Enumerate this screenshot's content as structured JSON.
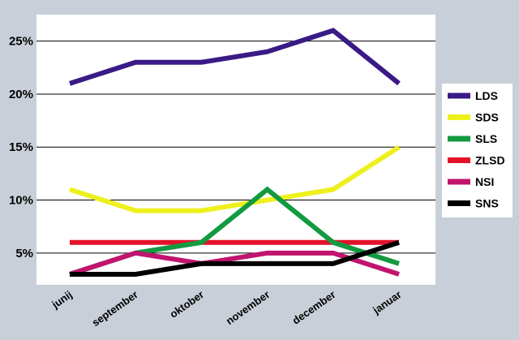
{
  "chart_data": {
    "type": "line",
    "categories": [
      "junij",
      "september",
      "oktober",
      "november",
      "december",
      "januar"
    ],
    "y_ticks": [
      5,
      10,
      15,
      20,
      25
    ],
    "y_tick_labels": [
      "5%",
      "10%",
      "15%",
      "20%",
      "25%"
    ],
    "ylim": [
      2,
      27.5
    ],
    "grid": "horizontal",
    "legend_position": "right",
    "series": [
      {
        "name": "LDS",
        "color": "#3a1a86",
        "values": [
          21,
          23,
          23,
          24,
          26,
          21
        ]
      },
      {
        "name": "SDS",
        "color": "#eef01e",
        "values": [
          11,
          9,
          9,
          10,
          11,
          15
        ]
      },
      {
        "name": "SLS",
        "color": "#129a40",
        "values": [
          3,
          5,
          6,
          11,
          6,
          4
        ]
      },
      {
        "name": "ZLSD",
        "color": "#e3122a",
        "values": [
          6,
          6,
          6,
          6,
          6,
          6
        ]
      },
      {
        "name": "NSI",
        "color": "#c0146e",
        "values": [
          3,
          5,
          4,
          5,
          5,
          3
        ]
      },
      {
        "name": "SNS",
        "color": "#000000",
        "values": [
          3,
          3,
          4,
          4,
          4,
          6
        ]
      }
    ],
    "background_color": "#c9cfd8",
    "plot_background_color": "#ffffff"
  }
}
